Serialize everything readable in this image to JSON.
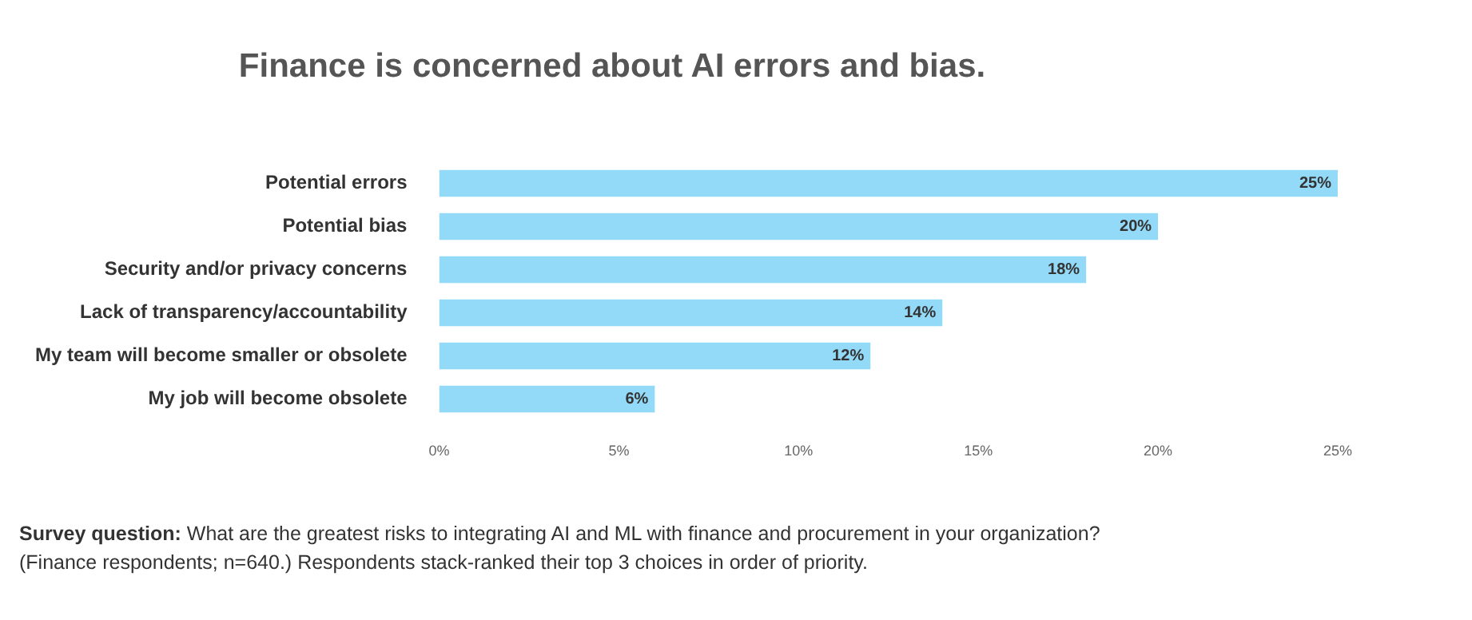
{
  "chart_data": {
    "type": "bar",
    "orientation": "horizontal",
    "title": "Finance is concerned about AI errors and bias.",
    "categories": [
      "Potential errors",
      "Potential bias",
      "Security and/or privacy concerns",
      "Lack of transparency/accountability",
      "My team will become smaller or obsolete",
      "My job will become obsolete"
    ],
    "values": [
      25,
      20,
      18,
      14,
      12,
      6
    ],
    "value_labels": [
      "25%",
      "20%",
      "18%",
      "14%",
      "12%",
      "6%"
    ],
    "color": "#93d9f8",
    "xlim": [
      0,
      25
    ],
    "xticks": [
      {
        "value": 0,
        "label": "0%"
      },
      {
        "value": 5,
        "label": "5%"
      },
      {
        "value": 10,
        "label": "10%"
      },
      {
        "value": 15,
        "label": "15%"
      },
      {
        "value": 20,
        "label": "20%"
      },
      {
        "value": 25,
        "label": "25%"
      }
    ],
    "grid": false,
    "legend": false,
    "annotations": [
      "Survey question:",
      "What are the greatest risks to integrating AI and ML with finance and procurement in your organization?",
      "(Finance respondents; n=640.) Respondents stack-ranked their top 3 choices in order of priority."
    ]
  }
}
